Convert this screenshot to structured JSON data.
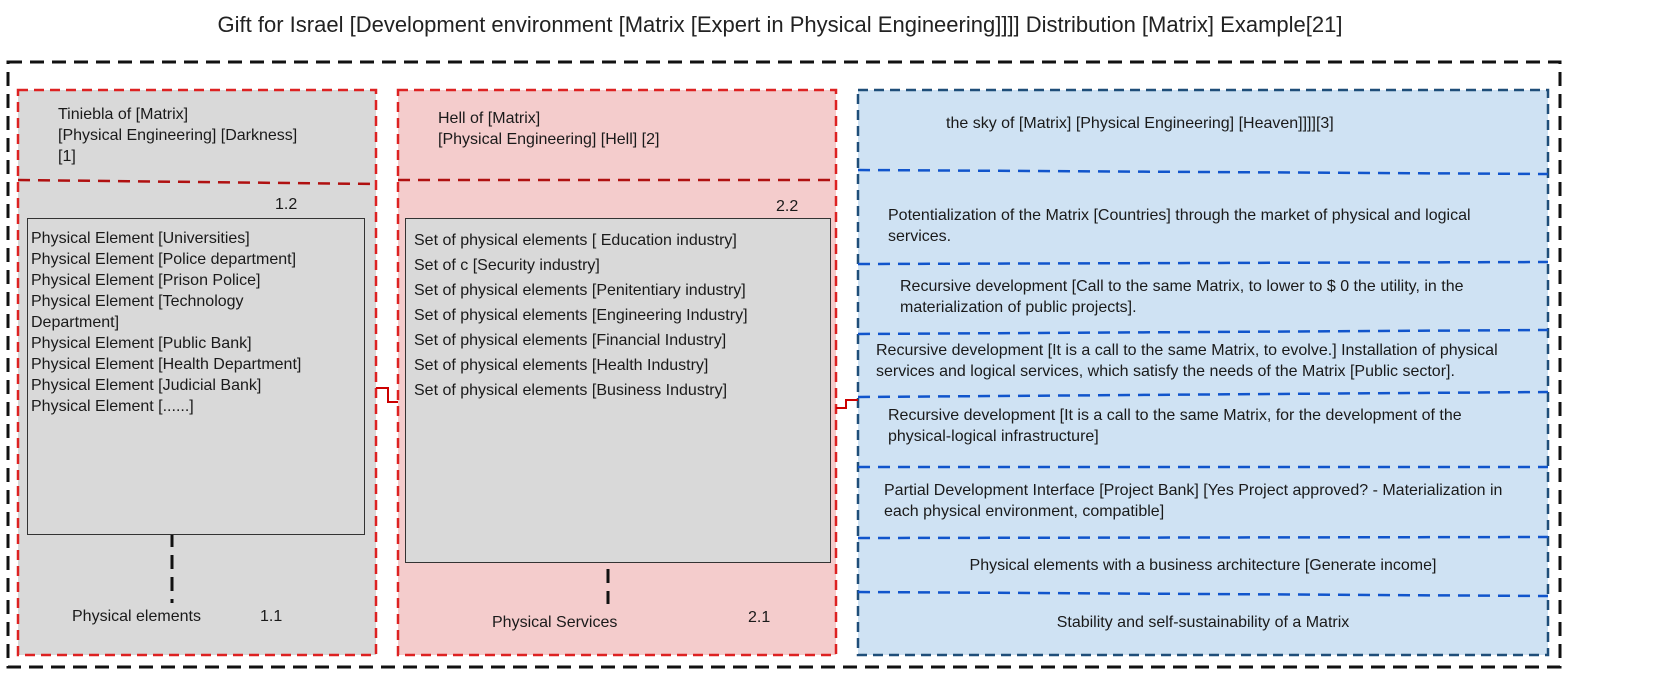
{
  "title": "Gift for Israel [Development environment [Matrix [Expert in Physical Engineering]]]] Distribution [Matrix] Example[21]",
  "colors": {
    "outer_border": "#111111",
    "gray_fill": "#d9d9d9",
    "gray_border": "#dd2222",
    "pink_fill": "#f4cccc",
    "pink_border": "#dd2222",
    "blue_fill": "#cfe2f3",
    "blue_border": "#1f4e79",
    "blue_divider": "#1155cc",
    "connector": "#cc0000"
  },
  "darkness": {
    "header_line1": "Tiniebla of [Matrix]",
    "header_line2": "[Physical Engineering] [Darkness]",
    "header_line3": "[1]",
    "num_top": "1.2",
    "items": [
      "Physical Element [Universities]",
      "Physical Element [Police department]",
      "Physical Element [Prison Police]",
      "Physical Element [Technology Department]",
      "Physical Element [Public Bank]",
      "Physical Element [Health Department]",
      "Physical Element [Judicial Bank]",
      "Physical Element [......]"
    ],
    "footer_label": "Physical elements",
    "footer_num": "1.1"
  },
  "hell": {
    "header_line1": "Hell of [Matrix]",
    "header_line2": "[Physical Engineering] [Hell] [2]",
    "num_top": "2.2",
    "items": [
      "Set of physical elements [ Education industry]",
      "Set of c [Security industry]",
      "Set of physical elements [Penitentiary industry]",
      "Set of physical elements [Engineering Industry]",
      "Set of physical elements [Financial Industry]",
      "Set of physical elements [Health Industry]",
      "Set of physical elements [Business Industry]"
    ],
    "footer_label": "Physical Services",
    "footer_num": "2.1"
  },
  "heaven": {
    "header": "the sky of  [Matrix] [Physical Engineering] [Heaven]]]][3]",
    "rows": [
      "Potentialization of the Matrix [Countries] through the market of physical and logical services.",
      "Recursive development [Call to the same Matrix, to lower to $ 0 the utility, in the materialization of public projects].",
      "Recursive development [It is a call to the same Matrix, to evolve.] Installation of physical services and logical services, which satisfy the needs of the Matrix [Public sector].",
      "Recursive development [It is a call to the same Matrix, for the development of the physical-logical infrastructure]",
      "Partial Development Interface [Project Bank] [Yes Project approved? - Materialization in each physical environment, compatible]",
      "Physical elements with a business architecture [Generate income]",
      "Stability and self-sustainability of a Matrix"
    ]
  }
}
